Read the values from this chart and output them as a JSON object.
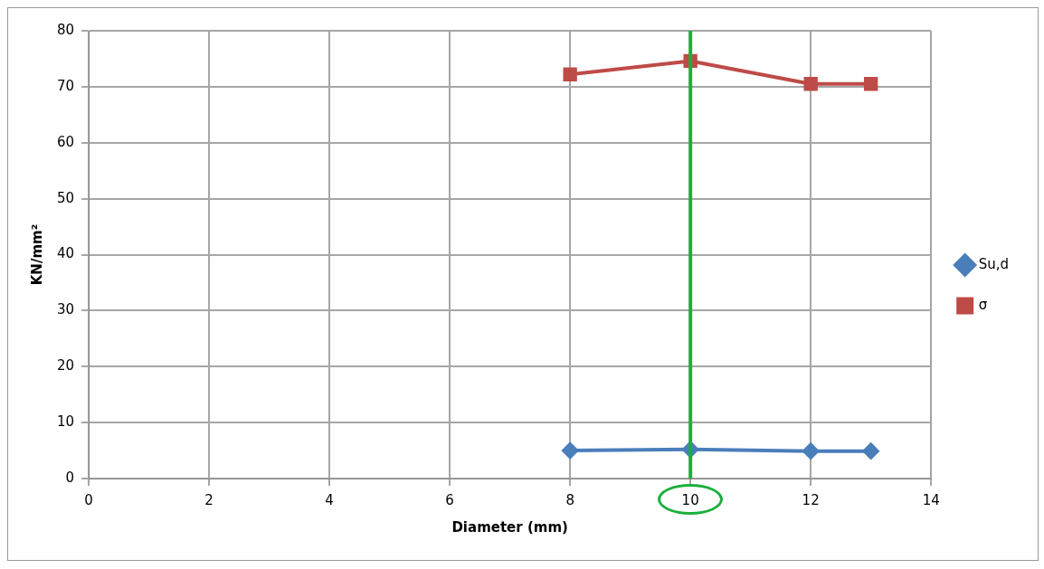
{
  "chart_data": {
    "type": "line",
    "xlabel": "Diameter (mm)",
    "ylabel": "KN/mm²",
    "xlim": [
      0,
      14
    ],
    "xticks": [
      0,
      2,
      4,
      6,
      8,
      10,
      12,
      14
    ],
    "ylim": [
      0,
      80
    ],
    "yticks": [
      0,
      10,
      20,
      30,
      40,
      50,
      60,
      70,
      80
    ],
    "grid": true,
    "legend": "right",
    "series": [
      {
        "name": "Su,d",
        "color": "#4a7ebb",
        "marker": "diamond",
        "x": [
          8,
          10,
          12,
          13
        ],
        "values": [
          5.0,
          5.2,
          4.9,
          4.9
        ]
      },
      {
        "name": "σ",
        "color": "#be4b48",
        "marker": "square",
        "x": [
          8,
          10,
          12,
          13
        ],
        "values": [
          72.2,
          74.6,
          70.5,
          70.5
        ]
      }
    ],
    "ref_lines": [
      {
        "axis": "x",
        "value": 10,
        "color": "#1ab03c"
      }
    ]
  }
}
